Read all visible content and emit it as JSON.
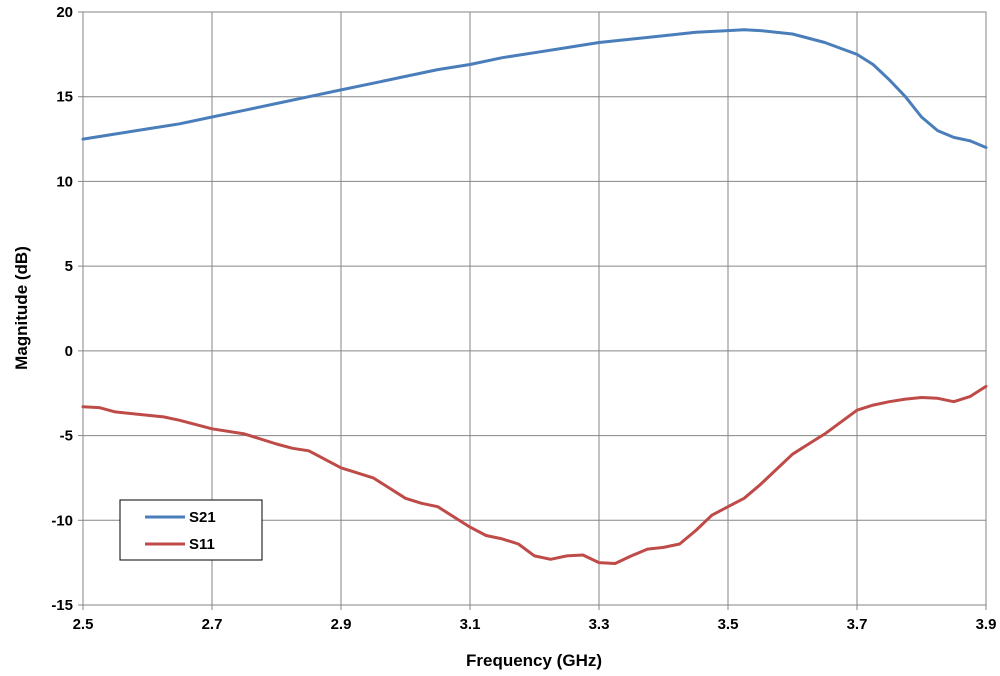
{
  "chart_data": {
    "type": "line",
    "title": "",
    "xlabel": "Frequency (GHz)",
    "ylabel": "Magnitude (dB)",
    "xlim": [
      2.5,
      3.9
    ],
    "ylim": [
      -15,
      20
    ],
    "x_ticks": [
      "2.5",
      "2.7",
      "2.9",
      "3.1",
      "3.3",
      "3.5",
      "3.7",
      "3.9"
    ],
    "y_ticks": [
      "20",
      "15",
      "10",
      "5",
      "0",
      "-5",
      "-10",
      "-15"
    ],
    "grid": true,
    "legend_position": "lower-left",
    "series": [
      {
        "name": "S21",
        "color": "#4a7ebb",
        "x": [
          2.5,
          2.55,
          2.6,
          2.65,
          2.7,
          2.75,
          2.8,
          2.85,
          2.9,
          2.95,
          3.0,
          3.05,
          3.1,
          3.15,
          3.2,
          3.25,
          3.3,
          3.35,
          3.4,
          3.45,
          3.5,
          3.525,
          3.55,
          3.6,
          3.65,
          3.7,
          3.725,
          3.75,
          3.775,
          3.8,
          3.825,
          3.85,
          3.875,
          3.9
        ],
        "values": [
          12.5,
          12.8,
          13.1,
          13.4,
          13.8,
          14.2,
          14.6,
          15.0,
          15.4,
          15.8,
          16.2,
          16.6,
          16.9,
          17.3,
          17.6,
          17.9,
          18.2,
          18.4,
          18.6,
          18.8,
          18.9,
          18.95,
          18.9,
          18.7,
          18.2,
          17.5,
          16.9,
          16.0,
          15.0,
          13.8,
          13.0,
          12.6,
          12.4,
          12.0
        ]
      },
      {
        "name": "S11",
        "color": "#be4b48",
        "x": [
          2.5,
          2.525,
          2.55,
          2.6,
          2.625,
          2.65,
          2.7,
          2.75,
          2.8,
          2.825,
          2.85,
          2.9,
          2.95,
          3.0,
          3.025,
          3.05,
          3.1,
          3.125,
          3.15,
          3.175,
          3.2,
          3.225,
          3.25,
          3.275,
          3.3,
          3.325,
          3.35,
          3.375,
          3.4,
          3.425,
          3.45,
          3.475,
          3.5,
          3.525,
          3.55,
          3.6,
          3.625,
          3.65,
          3.7,
          3.725,
          3.75,
          3.775,
          3.8,
          3.825,
          3.85,
          3.875,
          3.9
        ],
        "values": [
          -3.3,
          -3.35,
          -3.6,
          -3.8,
          -3.9,
          -4.1,
          -4.6,
          -4.9,
          -5.5,
          -5.75,
          -5.9,
          -6.9,
          -7.5,
          -8.7,
          -9.0,
          -9.2,
          -10.4,
          -10.9,
          -11.1,
          -11.4,
          -12.1,
          -12.3,
          -12.1,
          -12.05,
          -12.5,
          -12.55,
          -12.1,
          -11.7,
          -11.6,
          -11.4,
          -10.6,
          -9.7,
          -9.2,
          -8.7,
          -7.9,
          -6.1,
          -5.5,
          -4.9,
          -3.5,
          -3.2,
          -3.0,
          -2.85,
          -2.75,
          -2.8,
          -3.0,
          -2.7,
          -2.1
        ]
      }
    ]
  }
}
